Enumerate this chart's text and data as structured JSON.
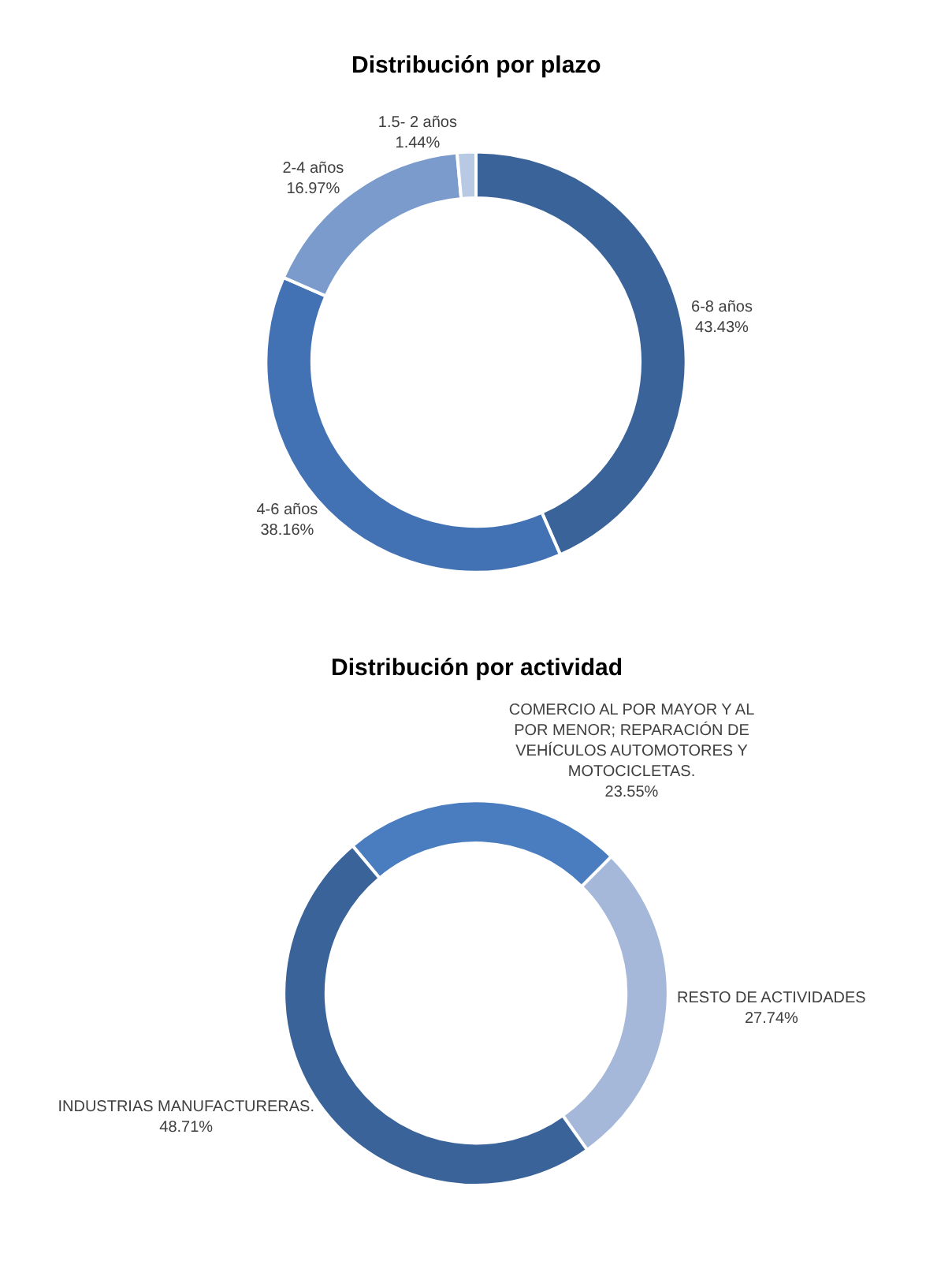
{
  "chart_data": [
    {
      "type": "donut",
      "title": "Distribución por plazo",
      "categories": [
        "6-8 años",
        "4-6 años",
        "2-4 años",
        "1.5- 2 años"
      ],
      "values": [
        43.43,
        38.16,
        16.97,
        1.44
      ],
      "value_labels": [
        "43.43%",
        "38.16%",
        "16.97%",
        "1.44%"
      ],
      "colors": [
        "#3a6399",
        "#4272b4",
        "#7b9bcc",
        "#b8c9e3"
      ]
    },
    {
      "type": "donut",
      "title": "Distribución por actividad",
      "categories": [
        "COMERCIO AL POR MAYOR Y AL POR MENOR; REPARACIÓN DE VEHÍCULOS AUTOMOTORES Y MOTOCICLETAS.",
        "RESTO DE ACTIVIDADES",
        "INDUSTRIAS MANUFACTURERAS."
      ],
      "values": [
        23.55,
        27.74,
        48.71
      ],
      "value_labels": [
        "23.55%",
        "27.74%",
        "48.71%"
      ],
      "colors": [
        "#4a7dc0",
        "#a6b8da",
        "#3a6399"
      ]
    }
  ]
}
